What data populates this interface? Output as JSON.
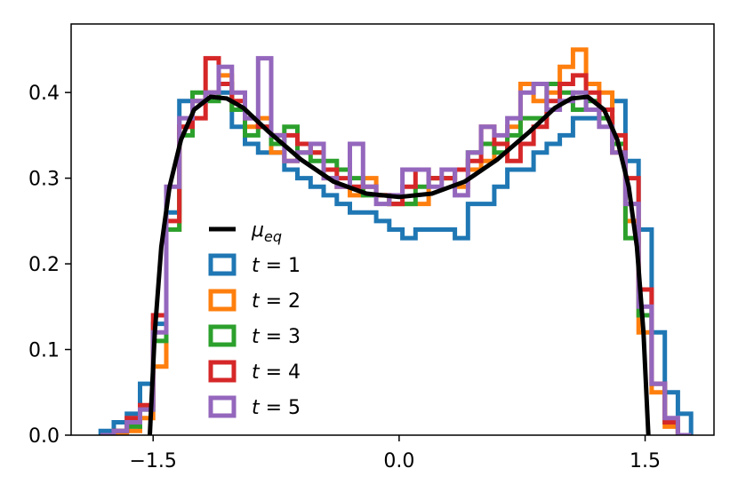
{
  "chart_data": {
    "type": "line",
    "title": "",
    "xlabel": "",
    "ylabel": "",
    "xlim": [
      -2.0,
      1.92
    ],
    "ylim": [
      0.0,
      0.48
    ],
    "grid": false,
    "legend_placement": "lower-left",
    "x_ticks": [
      {
        "value": -1.5,
        "label": "−1.5"
      },
      {
        "value": 0.0,
        "label": "0.0"
      },
      {
        "value": 1.5,
        "label": "1.5"
      }
    ],
    "y_ticks": [
      {
        "value": 0.0,
        "label": "0.0"
      },
      {
        "value": 0.1,
        "label": "0.1"
      },
      {
        "value": 0.2,
        "label": "0.2"
      },
      {
        "value": 0.3,
        "label": "0.3"
      },
      {
        "value": 0.4,
        "label": "0.4"
      }
    ],
    "equilibrium": {
      "name": "μ_eq",
      "name_main": "μ",
      "name_sub": "eq",
      "color": "#000000",
      "x": [
        -1.52,
        -1.49,
        -1.45,
        -1.4,
        -1.33,
        -1.25,
        -1.15,
        -1.05,
        -0.95,
        -0.8,
        -0.6,
        -0.4,
        -0.2,
        0.0,
        0.2,
        0.4,
        0.6,
        0.8,
        0.95,
        1.05,
        1.15,
        1.25,
        1.33,
        1.4,
        1.45,
        1.49,
        1.52
      ],
      "y": [
        0.0,
        0.12,
        0.22,
        0.29,
        0.345,
        0.38,
        0.395,
        0.393,
        0.382,
        0.355,
        0.322,
        0.296,
        0.282,
        0.278,
        0.282,
        0.296,
        0.322,
        0.355,
        0.382,
        0.393,
        0.395,
        0.38,
        0.345,
        0.29,
        0.22,
        0.12,
        0.0
      ]
    },
    "hist_edges": [
      -1.82,
      -1.74,
      -1.66,
      -1.58,
      -1.5,
      -1.42,
      -1.34,
      -1.26,
      -1.18,
      -1.1,
      -1.02,
      -0.94,
      -0.86,
      -0.78,
      -0.7,
      -0.62,
      -0.54,
      -0.46,
      -0.38,
      -0.3,
      -0.22,
      -0.14,
      -0.06,
      0.02,
      0.1,
      0.18,
      0.26,
      0.34,
      0.42,
      0.5,
      0.58,
      0.66,
      0.74,
      0.82,
      0.9,
      0.98,
      1.06,
      1.14,
      1.22,
      1.3,
      1.38,
      1.46,
      1.54,
      1.62,
      1.7,
      1.78
    ],
    "series": [
      {
        "name": "t = 1",
        "label_var": "t",
        "label_val": "1",
        "color": "#1f77b4",
        "values": [
          0.005,
          0.015,
          0.025,
          0.06,
          0.13,
          0.26,
          0.39,
          0.39,
          0.4,
          0.4,
          0.36,
          0.34,
          0.33,
          0.33,
          0.31,
          0.3,
          0.29,
          0.28,
          0.27,
          0.26,
          0.26,
          0.25,
          0.24,
          0.23,
          0.24,
          0.24,
          0.24,
          0.23,
          0.27,
          0.27,
          0.29,
          0.31,
          0.31,
          0.33,
          0.34,
          0.35,
          0.37,
          0.37,
          0.38,
          0.39,
          0.32,
          0.24,
          0.12,
          0.05,
          0.025
        ]
      },
      {
        "name": "t = 2",
        "label_var": "t",
        "label_val": "2",
        "color": "#ff7f0e",
        "values": [
          0.0,
          0.0,
          0.005,
          0.02,
          0.08,
          0.24,
          0.36,
          0.39,
          0.4,
          0.42,
          0.38,
          0.36,
          0.37,
          0.33,
          0.32,
          0.34,
          0.33,
          0.3,
          0.29,
          0.28,
          0.3,
          0.28,
          0.27,
          0.27,
          0.27,
          0.3,
          0.3,
          0.29,
          0.31,
          0.32,
          0.34,
          0.36,
          0.41,
          0.39,
          0.4,
          0.43,
          0.45,
          0.41,
          0.4,
          0.33,
          0.25,
          0.12,
          0.05,
          0.01,
          0.0
        ]
      },
      {
        "name": "t = 3",
        "label_var": "t",
        "label_val": "3",
        "color": "#2ca02c",
        "values": [
          0.0,
          0.005,
          0.01,
          0.03,
          0.11,
          0.24,
          0.35,
          0.4,
          0.39,
          0.41,
          0.38,
          0.35,
          0.36,
          0.34,
          0.36,
          0.33,
          0.32,
          0.32,
          0.31,
          0.3,
          0.28,
          0.28,
          0.27,
          0.27,
          0.29,
          0.3,
          0.3,
          0.31,
          0.33,
          0.34,
          0.33,
          0.35,
          0.37,
          0.37,
          0.41,
          0.4,
          0.38,
          0.39,
          0.37,
          0.34,
          0.23,
          0.14,
          0.06,
          0.015,
          0.0
        ]
      },
      {
        "name": "t = 4",
        "label_var": "t",
        "label_val": "4",
        "color": "#d62728",
        "values": [
          0.0,
          0.005,
          0.02,
          0.035,
          0.14,
          0.25,
          0.36,
          0.37,
          0.44,
          0.41,
          0.39,
          0.37,
          0.36,
          0.35,
          0.35,
          0.34,
          0.33,
          0.31,
          0.3,
          0.29,
          0.29,
          0.28,
          0.27,
          0.29,
          0.31,
          0.3,
          0.3,
          0.31,
          0.32,
          0.36,
          0.34,
          0.32,
          0.34,
          0.36,
          0.39,
          0.41,
          0.42,
          0.4,
          0.38,
          0.35,
          0.3,
          0.17,
          0.06,
          0.015,
          0.0
        ]
      },
      {
        "name": "t = 5",
        "label_var": "t",
        "label_val": "5",
        "color": "#9467bd",
        "values": [
          0.0,
          0.005,
          0.015,
          0.03,
          0.12,
          0.29,
          0.37,
          0.39,
          0.4,
          0.43,
          0.4,
          0.37,
          0.44,
          0.35,
          0.32,
          0.33,
          0.34,
          0.3,
          0.29,
          0.34,
          0.29,
          0.27,
          0.28,
          0.31,
          0.31,
          0.29,
          0.31,
          0.28,
          0.33,
          0.36,
          0.35,
          0.37,
          0.4,
          0.41,
          0.38,
          0.39,
          0.4,
          0.38,
          0.36,
          0.33,
          0.27,
          0.15,
          0.06,
          0.02,
          0.0
        ]
      }
    ]
  }
}
